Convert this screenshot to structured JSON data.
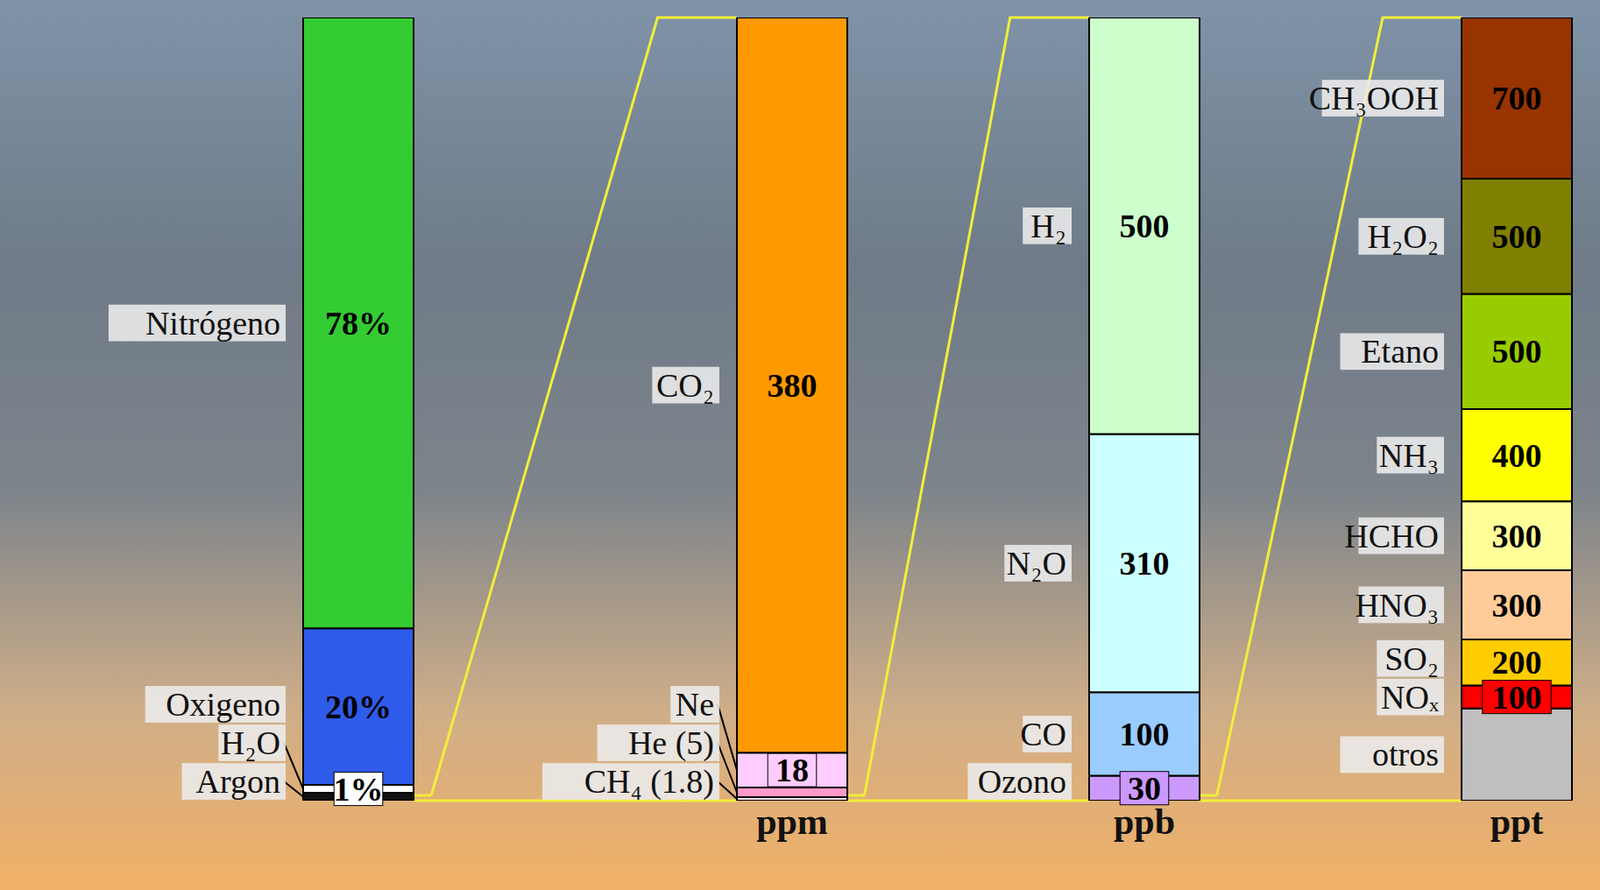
{
  "chart_data": [
    {
      "type": "bar",
      "stacked": true,
      "data_labels": true,
      "tick_labels": false,
      "categories": [
        null
      ],
      "ylim": [
        0,
        100
      ],
      "series": [
        {
          "name": "Nitrógeno",
          "color": "#33cc33",
          "values": [
            78
          ],
          "value_labels": [
            "78%"
          ]
        },
        {
          "name": "Oxigeno",
          "color": "#2f5bea",
          "values": [
            20
          ],
          "value_labels": [
            "20%"
          ]
        },
        {
          "name": "H₂O",
          "color": "#ffffff",
          "values": [
            1
          ],
          "value_labels": [
            "1%"
          ]
        },
        {
          "name": "Argon",
          "color": "#111111",
          "values": [
            1
          ],
          "data_labels": false
        }
      ]
    },
    {
      "type": "bar",
      "stacked": true,
      "data_labels": true,
      "tick_labels": "x",
      "categories": [
        "ppm"
      ],
      "ylim": [
        0,
        404.8
      ],
      "series": [
        {
          "name": "CO₂",
          "color": "#ff9900",
          "values": [
            380
          ]
        },
        {
          "name": "Ne",
          "color": "#ffccff",
          "values": [
            18
          ]
        },
        {
          "name": "He (5)",
          "color": "#ff99cc",
          "values": [
            5
          ],
          "data_labels": false
        },
        {
          "name": "CH₄ (1.8)",
          "color": "#fbe3ec",
          "values": [
            1.8
          ],
          "data_labels": false
        }
      ]
    },
    {
      "type": "bar",
      "stacked": true,
      "data_labels": true,
      "tick_labels": "x",
      "categories": [
        "ppb"
      ],
      "ylim": [
        0,
        940
      ],
      "series": [
        {
          "name": "H₂",
          "color": "#ccffcc",
          "values": [
            500
          ]
        },
        {
          "name": "N₂O",
          "color": "#ccffff",
          "values": [
            310
          ]
        },
        {
          "name": "CO",
          "color": "#99ccff",
          "values": [
            100
          ]
        },
        {
          "name": "Ozono",
          "color": "#cc99ff",
          "values": [
            30
          ]
        }
      ]
    },
    {
      "type": "bar",
      "stacked": true,
      "data_labels": true,
      "tick_labels": "x",
      "categories": [
        "ppt"
      ],
      "ylim": [
        0,
        3400
      ],
      "series": [
        {
          "name": "CH₃OOH",
          "color": "#993300",
          "values": [
            700
          ]
        },
        {
          "name": "H₂O₂",
          "color": "#808000",
          "values": [
            500
          ]
        },
        {
          "name": "Etano",
          "color": "#99cc00",
          "values": [
            500
          ]
        },
        {
          "name": "NH₃",
          "color": "#ffff00",
          "values": [
            400
          ]
        },
        {
          "name": "HCHO",
          "color": "#ffff99",
          "values": [
            300
          ]
        },
        {
          "name": "HNO₃",
          "color": "#ffcc99",
          "values": [
            300
          ]
        },
        {
          "name": "SO₂",
          "color": "#ffcc00",
          "values": [
            200
          ]
        },
        {
          "name": "NOₓ",
          "color": "#ff0000",
          "values": [
            100
          ]
        },
        {
          "name": "otros",
          "color": "#bfbfbf",
          "values": [
            400
          ],
          "data_labels": false
        }
      ]
    }
  ]
}
